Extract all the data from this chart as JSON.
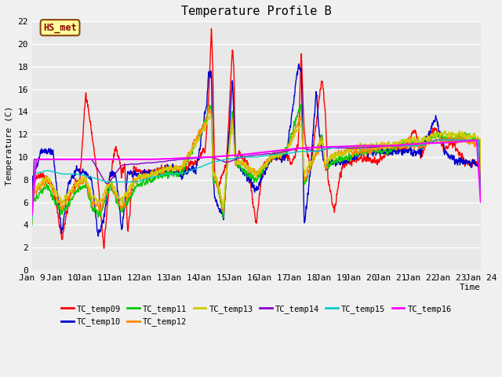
{
  "title": "Temperature Profile B",
  "xlabel": "Time",
  "ylabel": "Temperature (C)",
  "ylim": [
    0,
    22
  ],
  "annotation": "HS_met",
  "series_colors": {
    "TC_temp09": "#ff0000",
    "TC_temp10": "#0000cc",
    "TC_temp11": "#00cc00",
    "TC_temp12": "#ff8800",
    "TC_temp13": "#cccc00",
    "TC_temp14": "#8800cc",
    "TC_temp15": "#00cccc",
    "TC_temp16": "#ff00ff"
  },
  "x_tick_labels": [
    "Jan 9",
    "Jan 10",
    "Jan 11",
    "Jan 12",
    "Jan 13",
    "Jan 14",
    "Jan 15",
    "Jan 16",
    "Jan 17",
    "Jan 18",
    "Jan 19",
    "Jan 20",
    "Jan 21",
    "Jan 22",
    "Jan 23",
    "Jan 24"
  ],
  "yticks": [
    0,
    2,
    4,
    6,
    8,
    10,
    12,
    14,
    16,
    18,
    20,
    22
  ],
  "figsize": [
    6.4,
    4.8
  ],
  "dpi": 100
}
